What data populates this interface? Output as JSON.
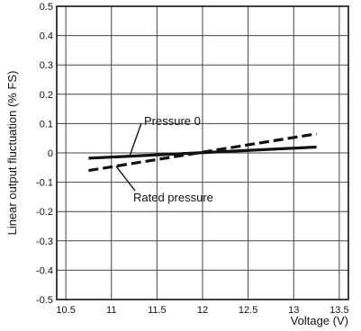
{
  "chart_data": {
    "type": "line",
    "xlabel": "Voltage (V)",
    "ylabel": "Linear output fluctuation (% FS)",
    "xlim": [
      10.4,
      13.6
    ],
    "ylim": [
      -0.5,
      0.5
    ],
    "x_ticks": [
      "10.5",
      "11",
      "11.5",
      "12",
      "12.5",
      "13",
      "13.5"
    ],
    "y_ticks": [
      "0.5",
      "0.4",
      "0.3",
      "0.2",
      "0.1",
      "0",
      "-0.1",
      "-0.2",
      "-0.3",
      "-0.4",
      "-0.5"
    ],
    "grid": true,
    "series": [
      {
        "name": "Pressure 0",
        "style": "solid",
        "x": [
          10.75,
          13.25
        ],
        "y": [
          -0.018,
          0.02
        ]
      },
      {
        "name": "Rated pressure",
        "style": "dashed",
        "x": [
          10.75,
          13.25
        ],
        "y": [
          -0.06,
          0.065
        ]
      }
    ],
    "annotations": [
      {
        "text": "Pressure 0",
        "series": 0
      },
      {
        "text": "Rated pressure",
        "series": 1
      }
    ]
  }
}
